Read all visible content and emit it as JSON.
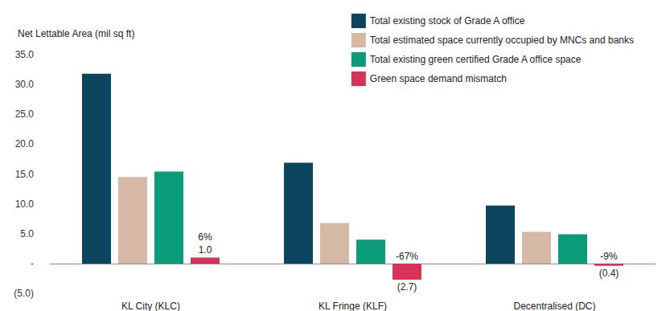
{
  "chart_data": {
    "type": "bar",
    "y_label": "Net Lettable Area (mil sq ft)",
    "categories": [
      "KL City (KLC)",
      "KL Fringe (KLF)",
      "Decentralised (DC)"
    ],
    "series": [
      {
        "name": "Total existing stock of Grade A office",
        "color": "#0c455e",
        "values": [
          31.8,
          16.9,
          9.7
        ]
      },
      {
        "name": "Total estimated space currently occupied by MNCs and banks",
        "color": "#d5b9a5",
        "values": [
          14.5,
          6.8,
          5.3
        ]
      },
      {
        "name": "Total existing green certified Grade A office space",
        "color": "#0a9b78",
        "values": [
          15.4,
          4.0,
          4.9
        ]
      },
      {
        "name": "Green space demand mismatch",
        "color": "#d6335a",
        "values": [
          1.0,
          -2.7,
          -0.4
        ],
        "data_labels": true,
        "value_labels": [
          "1.0",
          "(2.7)",
          "(0.4)"
        ],
        "percent_values": [
          6,
          -67,
          -9
        ],
        "percent_labels": [
          "6%",
          "-67%",
          "-9%"
        ]
      }
    ],
    "ylim": [
      -5,
      35
    ],
    "yticks": [
      {
        "value": -5,
        "label": "(5.0)"
      },
      {
        "value": 0,
        "label": "-"
      },
      {
        "value": 5,
        "label": "5.0"
      },
      {
        "value": 10,
        "label": "10.0"
      },
      {
        "value": 15,
        "label": "15.0"
      },
      {
        "value": 20,
        "label": "20.0"
      },
      {
        "value": 25,
        "label": "25.0"
      },
      {
        "value": 30,
        "label": "30.0"
      },
      {
        "value": 35,
        "label": "35.0"
      }
    ],
    "grid": false,
    "legend": "top right"
  }
}
